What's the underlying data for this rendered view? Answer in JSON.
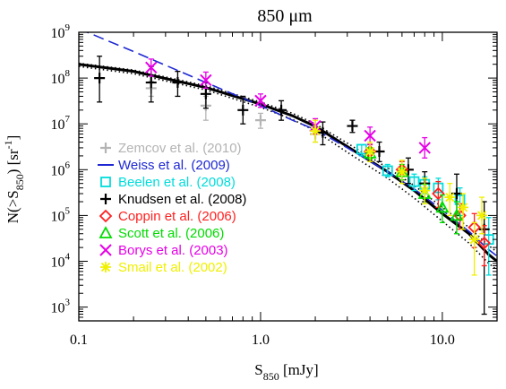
{
  "chart_data": {
    "type": "scatter",
    "title": "850 μm",
    "xlabel": "S",
    "xlabel_sub": "850",
    "xlabel_unit": " [mJy]",
    "ylabel": "N(>S",
    "ylabel_sub": "850",
    "ylabel_unit": ") [sr",
    "ylabel_sup": "-1",
    "ylabel_end": "]",
    "xscale": "log",
    "yscale": "log",
    "xlim": [
      0.1,
      20
    ],
    "ylim": [
      500,
      1000000000
    ],
    "xticks": [
      {
        "value": 0.1,
        "label": "0.1"
      },
      {
        "value": 1,
        "label": "1.0"
      },
      {
        "value": 10,
        "label": "10.0"
      }
    ],
    "yticks": [
      {
        "value": 1000,
        "base": "10",
        "exp": "3"
      },
      {
        "value": 10000,
        "base": "10",
        "exp": "4"
      },
      {
        "value": 100000,
        "base": "10",
        "exp": "5"
      },
      {
        "value": 1000000,
        "base": "10",
        "exp": "6"
      },
      {
        "value": 10000000,
        "base": "10",
        "exp": "7"
      },
      {
        "value": 100000000,
        "base": "10",
        "exp": "8"
      },
      {
        "value": 1000000000,
        "base": "10",
        "exp": "9"
      }
    ],
    "legend_position": "left",
    "series": [
      {
        "name": "Zemcov et al. (2010)",
        "color": "#b4b4b4",
        "marker": "plus",
        "points": [
          [
            0.25,
            60000000,
            40000000,
            85000000
          ],
          [
            0.5,
            25000000,
            12000000,
            40000000
          ],
          [
            1.0,
            12000000,
            8000000,
            17000000
          ],
          [
            2.0,
            6000000,
            4000000,
            9000000
          ]
        ]
      },
      {
        "name": "Weiss et al. (2009)",
        "color": "#1e28d2",
        "marker": "dashed-line",
        "points": []
      },
      {
        "name": "Beelen et al. (2008)",
        "color": "#00dcdc",
        "marker": "square",
        "points": [
          [
            3.6,
            2800000,
            2000000,
            3500000
          ],
          [
            5.0,
            950000,
            700000,
            1300000
          ],
          [
            7.0,
            550000,
            350000,
            800000
          ],
          [
            8.0,
            480000,
            300000,
            700000
          ],
          [
            9.5,
            400000,
            220000,
            650000
          ],
          [
            12.5,
            220000,
            100000,
            400000
          ],
          [
            18.0,
            30000,
            5000,
            90000
          ]
        ]
      },
      {
        "name": "Knudsen et al. (2008)",
        "color": "#000000",
        "marker": "plus",
        "points": [
          [
            0.13,
            100000000,
            30000000,
            300000000
          ],
          [
            0.25,
            80000000,
            30000000,
            180000000
          ],
          [
            0.35,
            80000000,
            40000000,
            140000000
          ],
          [
            0.5,
            45000000,
            22000000,
            80000000
          ],
          [
            0.8,
            20000000,
            10000000,
            40000000
          ],
          [
            1.3,
            20000000,
            12000000,
            32000000
          ],
          [
            2.2,
            6500000,
            3500000,
            11000000
          ],
          [
            3.2,
            9000000,
            6500000,
            12000000
          ],
          [
            4.5,
            2500000,
            1500000,
            4000000
          ],
          [
            6.5,
            1000000,
            500000,
            1800000
          ],
          [
            8.0,
            500000,
            200000,
            900000
          ],
          [
            12.0,
            300000,
            100000,
            800000
          ],
          [
            17.0,
            50000,
            700,
            200000
          ]
        ]
      },
      {
        "name": "Coppin et al. (2006)",
        "color": "#ff2020",
        "marker": "diamond",
        "points": [
          [
            4.0,
            2500000,
            1700000,
            3600000
          ],
          [
            6.0,
            1000000,
            600000,
            1500000
          ],
          [
            9.5,
            300000,
            150000,
            550000
          ],
          [
            12.5,
            100000,
            50000,
            180000
          ],
          [
            15.0,
            55000,
            20000,
            110000
          ],
          [
            17.0,
            25000,
            8000,
            60000
          ]
        ]
      },
      {
        "name": "Scott et al. (2006)",
        "color": "#00dc00",
        "marker": "triangle",
        "points": [
          [
            4.0,
            2300000,
            1700000,
            3000000
          ],
          [
            6.0,
            900000,
            600000,
            1300000
          ],
          [
            8.0,
            300000,
            180000,
            480000
          ],
          [
            10.0,
            150000,
            70000,
            280000
          ],
          [
            12.0,
            100000,
            40000,
            200000
          ]
        ]
      },
      {
        "name": "Borys et al. (2003)",
        "color": "#e600e6",
        "marker": "x",
        "points": [
          [
            0.25,
            170000000,
            110000000,
            260000000
          ],
          [
            0.5,
            90000000,
            60000000,
            135000000
          ],
          [
            1.0,
            32000000,
            23000000,
            45000000
          ],
          [
            2.0,
            9000000,
            6000000,
            13000000
          ],
          [
            4.0,
            5500000,
            3500000,
            8500000
          ],
          [
            8.0,
            3000000,
            1800000,
            5000000
          ]
        ]
      },
      {
        "name": "Smail et al. (2002)",
        "color": "#f0f000",
        "marker": "asterisk",
        "points": [
          [
            2.0,
            7000000,
            4000000,
            12000000
          ],
          [
            4.0,
            2500000,
            1500000,
            4000000
          ],
          [
            6.0,
            900000,
            500000,
            1600000
          ],
          [
            8.0,
            350000,
            180000,
            650000
          ],
          [
            11.0,
            250000,
            100000,
            500000
          ],
          [
            13.0,
            150000,
            50000,
            300000
          ],
          [
            15.0,
            30000,
            5000,
            70000
          ],
          [
            16.5,
            100000,
            40000,
            250000
          ]
        ]
      }
    ],
    "curves": [
      {
        "style": "solid",
        "color": "#000000",
        "points": [
          [
            0.1,
            200000000
          ],
          [
            0.2,
            140000000
          ],
          [
            0.5,
            62000000
          ],
          [
            1.0,
            27000000
          ],
          [
            1.5,
            15000000
          ],
          [
            2.0,
            8800000
          ],
          [
            3.0,
            3200000
          ],
          [
            5.0,
            900000
          ],
          [
            7.0,
            350000
          ],
          [
            10.0,
            110000
          ],
          [
            14.0,
            40000
          ],
          [
            18.0,
            14000
          ],
          [
            20.0,
            10000
          ]
        ]
      },
      {
        "style": "dotted",
        "color": "#000000",
        "points": [
          [
            0.1,
            210000000
          ],
          [
            0.2,
            150000000
          ],
          [
            0.5,
            68000000
          ],
          [
            1.0,
            30000000
          ],
          [
            1.5,
            17000000
          ],
          [
            2.0,
            10000000
          ],
          [
            3.0,
            3800000
          ],
          [
            5.0,
            1100000
          ],
          [
            7.0,
            450000
          ],
          [
            10.0,
            150000
          ],
          [
            14.0,
            55000
          ],
          [
            18.0,
            22000
          ],
          [
            20.0,
            16000
          ]
        ]
      },
      {
        "style": "dotted",
        "color": "#000000",
        "points": [
          [
            0.1,
            180000000
          ],
          [
            0.2,
            125000000
          ],
          [
            0.5,
            55000000
          ],
          [
            1.0,
            23000000
          ],
          [
            1.5,
            12500000
          ],
          [
            2.0,
            7000000
          ],
          [
            3.0,
            2400000
          ],
          [
            5.0,
            650000
          ],
          [
            7.0,
            240000
          ],
          [
            10.0,
            75000
          ],
          [
            14.0,
            25000
          ],
          [
            18.0,
            9000
          ],
          [
            20.0,
            6500
          ]
        ]
      },
      {
        "style": "dashed",
        "color": "#1e28d2",
        "points": [
          [
            0.1,
            1200000000
          ],
          [
            0.2,
            380000000
          ],
          [
            0.5,
            80000000
          ],
          [
            1.0,
            25000000
          ],
          [
            1.5,
            12000000
          ],
          [
            2.0,
            7500000
          ],
          [
            3.0,
            3000000
          ],
          [
            5.0,
            900000
          ],
          [
            7.0,
            380000
          ],
          [
            10.0,
            130000
          ],
          [
            14.0,
            45000
          ],
          [
            18.0,
            18000
          ],
          [
            20.0,
            13000
          ]
        ]
      }
    ]
  }
}
